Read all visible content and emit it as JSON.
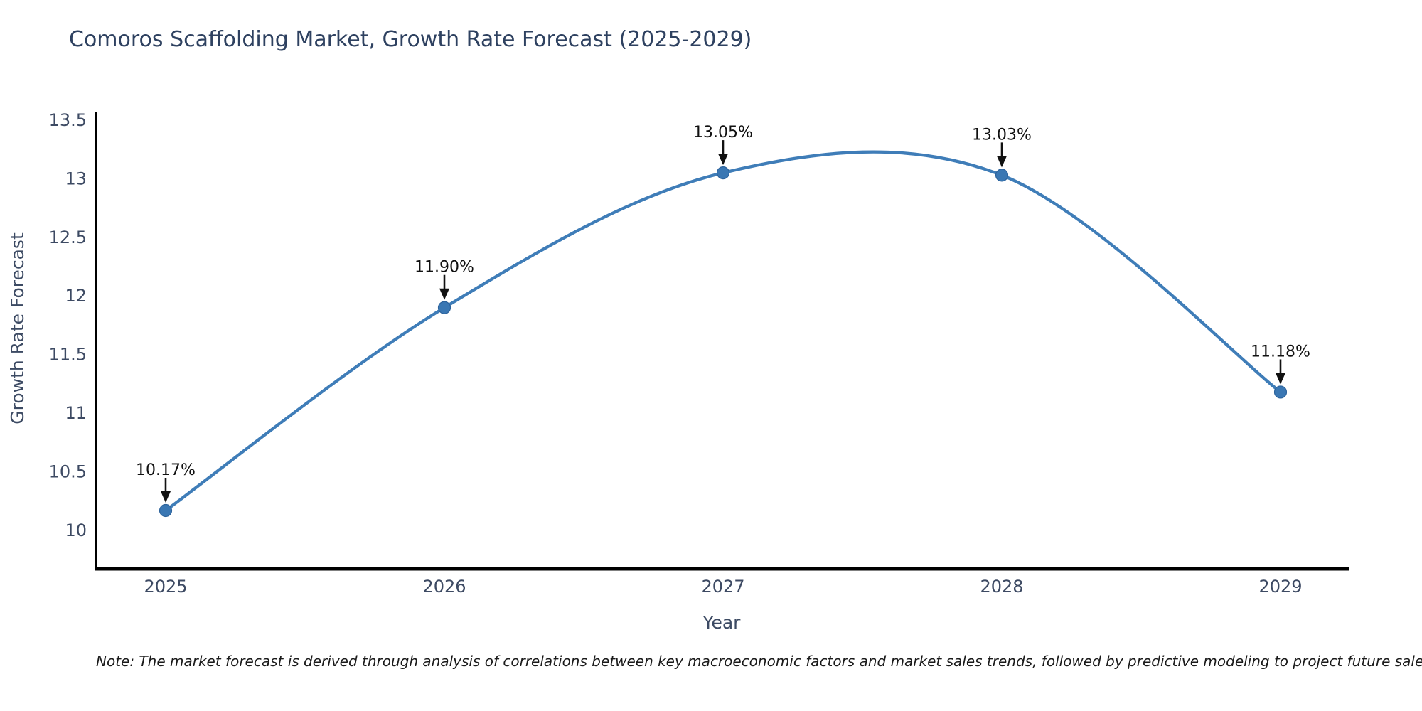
{
  "title": "Comoros Scaffolding Market, Growth Rate Forecast (2025-2029)",
  "note": "Note: The market forecast is derived through analysis of correlations between key macroeconomic factors and market sales trends, followed by predictive modeling to project future sales",
  "chart_data": {
    "type": "line",
    "title": "Comoros Scaffolding Market, Growth Rate Forecast (2025-2029)",
    "xlabel": "Year",
    "ylabel": "Growth Rate Forecast",
    "x": [
      2025,
      2026,
      2027,
      2028,
      2029
    ],
    "values": [
      10.17,
      11.9,
      13.05,
      13.03,
      11.18
    ],
    "point_labels": [
      "10.17%",
      "11.90%",
      "13.05%",
      "13.03%",
      "11.18%"
    ],
    "xticklabels": [
      "2025",
      "2026",
      "2027",
      "2028",
      "2029"
    ],
    "yticks": [
      10,
      10.5,
      11,
      11.5,
      12,
      12.5,
      13,
      13.5
    ],
    "yticklabels": [
      "10",
      "10.5",
      "11",
      "11.5",
      "12",
      "12.5",
      "13",
      "13.5"
    ],
    "ylim": [
      9.62,
      13.56
    ],
    "grid": false,
    "legend": "none",
    "line_shape": "spline",
    "annotation_style": "value label with down arrow to each point",
    "colors": {
      "line": "#3f7db8",
      "marker_fill": "#3a77b3",
      "marker_edge": "#2d639c",
      "annotation_text": "#111111",
      "axis_line": "#000000",
      "tick_text": "#3d4a63",
      "axis_title_text": "#3c4a63",
      "title_text": "#2e4160",
      "background": "#ffffff"
    }
  }
}
